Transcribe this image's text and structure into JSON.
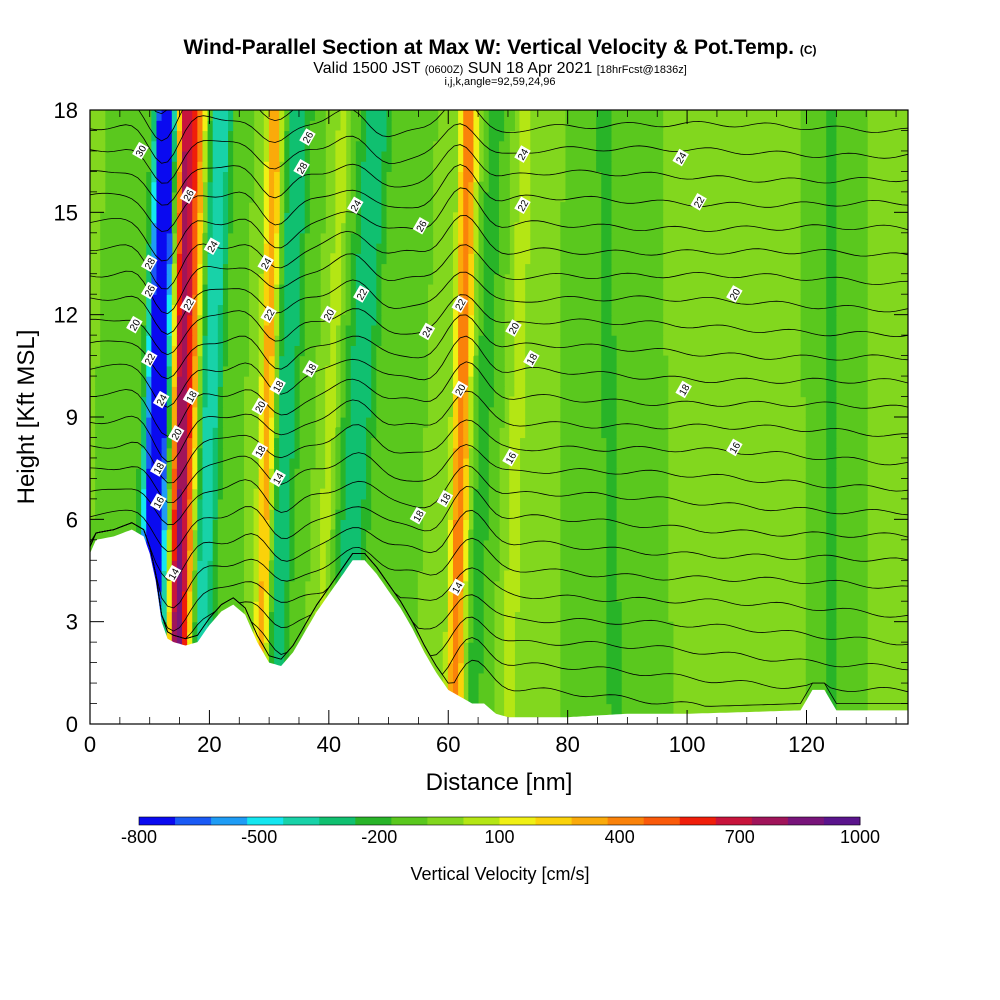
{
  "chart_data": {
    "type": "heatmap",
    "title": "Wind-Parallel Section at Max W: Vertical Velocity & Pot.Temp.",
    "title_mark": "(C)",
    "subtitle_main": "Valid 1500 JST",
    "subtitle_utc": "(0600Z)",
    "subtitle_date": "SUN 18 Apr 2021",
    "subtitle_fcst": "[18hrFcst@1836z]",
    "subtitle2": "i,j,k,angle=92,59,24,96",
    "xlabel": "Distance [nm]",
    "ylabel": "Height [Kft MSL]",
    "xlim": [
      0,
      137
    ],
    "ylim": [
      0,
      18
    ],
    "x_ticks": [
      0,
      20,
      40,
      60,
      80,
      100,
      120
    ],
    "y_ticks": [
      0,
      3,
      6,
      9,
      12,
      15,
      18
    ],
    "x_tick_labels": [
      "0",
      "20",
      "40",
      "60",
      "80",
      "100",
      "120"
    ],
    "y_tick_labels": [
      "0",
      "3",
      "6",
      "9",
      "12",
      "15",
      "18"
    ],
    "colorbar": {
      "title": "Vertical Velocity [cm/s]",
      "min": -800,
      "max": 1000,
      "step": 100,
      "labels": [
        "-800",
        "-500",
        "-200",
        "100",
        "400",
        "700",
        "1000"
      ],
      "label_values": [
        -800,
        -500,
        -200,
        100,
        400,
        700,
        1000
      ],
      "colors": [
        "#0a0af0",
        "#1a5af5",
        "#1e9cf5",
        "#14e6f0",
        "#18d2a8",
        "#10c070",
        "#28b428",
        "#5ac81e",
        "#82d71e",
        "#b4e614",
        "#f0f014",
        "#fad20a",
        "#faaa0a",
        "#fa820a",
        "#fa5a0a",
        "#f01e0a",
        "#c8143c",
        "#a0145a",
        "#78147a",
        "#5a148c"
      ]
    },
    "terrain_kft": [
      [
        0,
        5.0
      ],
      [
        1,
        5.4
      ],
      [
        4,
        5.5
      ],
      [
        7,
        5.7
      ],
      [
        9,
        5.5
      ],
      [
        10,
        5.0
      ],
      [
        11,
        4.2
      ],
      [
        12,
        3.0
      ],
      [
        13,
        2.5
      ],
      [
        14,
        2.4
      ],
      [
        16,
        2.3
      ],
      [
        18,
        2.4
      ],
      [
        20,
        2.9
      ],
      [
        22,
        3.3
      ],
      [
        24,
        3.5
      ],
      [
        26,
        3.2
      ],
      [
        28,
        2.4
      ],
      [
        30,
        1.8
      ],
      [
        32,
        1.7
      ],
      [
        34,
        2.1
      ],
      [
        36,
        2.7
      ],
      [
        38,
        3.3
      ],
      [
        40,
        3.8
      ],
      [
        42,
        4.3
      ],
      [
        44,
        4.8
      ],
      [
        46,
        4.8
      ],
      [
        48,
        4.4
      ],
      [
        50,
        3.9
      ],
      [
        52,
        3.4
      ],
      [
        54,
        2.8
      ],
      [
        56,
        2.1
      ],
      [
        58,
        1.5
      ],
      [
        60,
        1.0
      ],
      [
        62,
        0.8
      ],
      [
        64,
        0.6
      ],
      [
        66,
        0.6
      ],
      [
        68,
        0.3
      ],
      [
        70,
        0.2
      ],
      [
        80,
        0.2
      ],
      [
        90,
        0.3
      ],
      [
        100,
        0.3
      ],
      [
        110,
        0.35
      ],
      [
        119,
        0.4
      ],
      [
        121,
        1.0
      ],
      [
        123,
        1.0
      ],
      [
        125,
        0.4
      ],
      [
        137,
        0.4
      ]
    ],
    "velocity_features": [
      {
        "x0": 9.0,
        "x1": 12.5,
        "v": -800,
        "w": 1.6
      },
      {
        "x0": 11.5,
        "x1": 13.0,
        "v": -500,
        "w": 1.2
      },
      {
        "x0": 14.0,
        "x1": 16.0,
        "v": 800,
        "w": 1.3
      },
      {
        "x0": 15.5,
        "x1": 18.0,
        "v": 600,
        "w": 1.5
      },
      {
        "x0": 18.0,
        "x1": 22.0,
        "v": -400,
        "w": 2.0
      },
      {
        "x0": 28.5,
        "x1": 31.0,
        "v": 500,
        "w": 1.3
      },
      {
        "x0": 30.5,
        "x1": 35.0,
        "v": -300,
        "w": 2.2
      },
      {
        "x0": 38.0,
        "x1": 42.5,
        "v": 150,
        "w": 1.3
      },
      {
        "x0": 42.0,
        "x1": 48.0,
        "v": -300,
        "w": 2.6
      },
      {
        "x0": 61.0,
        "x1": 63.5,
        "v": 600,
        "w": 1.4
      },
      {
        "x0": 64.0,
        "x1": 68.0,
        "v": -150,
        "w": 1.8
      },
      {
        "x0": 70.0,
        "x1": 73.0,
        "v": 150,
        "w": 1.5
      },
      {
        "x0": 88.0,
        "x1": 86.0,
        "v": -150,
        "w": 1.6
      },
      {
        "x0": 113.0,
        "x1": 110.0,
        "v": 100,
        "w": 1.8
      },
      {
        "x0": 124.0,
        "x1": 124.0,
        "v": -200,
        "w": 1.0
      }
    ],
    "contour_labels": [
      {
        "text": "30",
        "x": 8.5,
        "y": 16.8
      },
      {
        "text": "28",
        "x": 10,
        "y": 13.5
      },
      {
        "text": "26",
        "x": 10,
        "y": 12.7
      },
      {
        "text": "20",
        "x": 7.5,
        "y": 11.7
      },
      {
        "text": "22",
        "x": 10,
        "y": 10.7
      },
      {
        "text": "24",
        "x": 12,
        "y": 9.5
      },
      {
        "text": "20",
        "x": 14.5,
        "y": 8.5
      },
      {
        "text": "18",
        "x": 11.5,
        "y": 7.5
      },
      {
        "text": "16",
        "x": 11.5,
        "y": 6.5
      },
      {
        "text": "14",
        "x": 14,
        "y": 4.4
      },
      {
        "text": "26",
        "x": 16.5,
        "y": 15.5
      },
      {
        "text": "24",
        "x": 20.5,
        "y": 14.0
      },
      {
        "text": "22",
        "x": 16.5,
        "y": 12.3
      },
      {
        "text": "18",
        "x": 17,
        "y": 9.6
      },
      {
        "text": "24",
        "x": 29.5,
        "y": 13.5
      },
      {
        "text": "22",
        "x": 30,
        "y": 12.0
      },
      {
        "text": "20",
        "x": 28.5,
        "y": 9.3
      },
      {
        "text": "18",
        "x": 31.5,
        "y": 9.9
      },
      {
        "text": "18",
        "x": 28.5,
        "y": 8.0
      },
      {
        "text": "14",
        "x": 31.5,
        "y": 7.2
      },
      {
        "text": "26",
        "x": 36.5,
        "y": 17.2
      },
      {
        "text": "28",
        "x": 35.5,
        "y": 16.3
      },
      {
        "text": "20",
        "x": 40,
        "y": 12.0
      },
      {
        "text": "18",
        "x": 37,
        "y": 10.4
      },
      {
        "text": "24",
        "x": 44.5,
        "y": 15.2
      },
      {
        "text": "22",
        "x": 45.5,
        "y": 12.6
      },
      {
        "text": "26",
        "x": 55.5,
        "y": 14.6
      },
      {
        "text": "24",
        "x": 56.5,
        "y": 11.5
      },
      {
        "text": "18",
        "x": 55,
        "y": 6.1
      },
      {
        "text": "18",
        "x": 59.5,
        "y": 6.6
      },
      {
        "text": "14",
        "x": 61.5,
        "y": 4.0
      },
      {
        "text": "22",
        "x": 62,
        "y": 12.3
      },
      {
        "text": "20",
        "x": 62,
        "y": 9.8
      },
      {
        "text": "24",
        "x": 72.5,
        "y": 16.7
      },
      {
        "text": "22",
        "x": 72.5,
        "y": 15.2
      },
      {
        "text": "20",
        "x": 71,
        "y": 11.6
      },
      {
        "text": "18",
        "x": 74,
        "y": 10.7
      },
      {
        "text": "16",
        "x": 70.5,
        "y": 7.8
      },
      {
        "text": "24",
        "x": 99,
        "y": 16.6
      },
      {
        "text": "22",
        "x": 102,
        "y": 15.3
      },
      {
        "text": "20",
        "x": 108,
        "y": 12.6
      },
      {
        "text": "18",
        "x": 99.5,
        "y": 9.8
      },
      {
        "text": "16",
        "x": 108,
        "y": 8.1
      }
    ],
    "grid": false,
    "legend_placement": "bottom"
  }
}
